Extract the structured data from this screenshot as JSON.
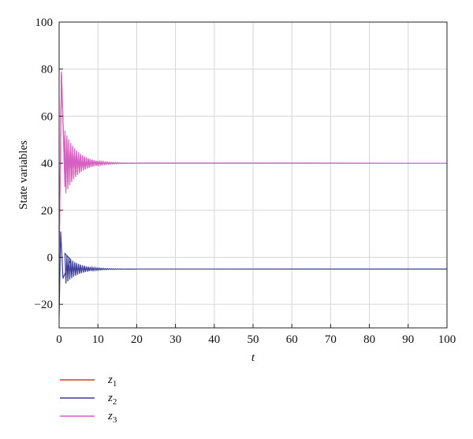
{
  "chart_data": {
    "type": "line",
    "title": "",
    "xlabel": "t",
    "ylabel": "State variables",
    "xlim": [
      0,
      100
    ],
    "ylim": [
      -30,
      100
    ],
    "grid": true,
    "legend_placement": "bottom-left",
    "x_ticks": [
      "0",
      "10",
      "20",
      "30",
      "40",
      "50",
      "60",
      "70",
      "80",
      "90",
      "100"
    ],
    "y_ticks": [
      "-20",
      "0",
      "20",
      "40",
      "60",
      "80",
      "100"
    ],
    "y_tick_values": [
      -20,
      0,
      20,
      40,
      60,
      80,
      100
    ],
    "x_tick_values": [
      0,
      10,
      20,
      30,
      40,
      50,
      60,
      70,
      80,
      90,
      100
    ],
    "series": [
      {
        "name": "z",
        "subscript": "1",
        "color": "#e8322f",
        "final_value": 40,
        "points": [
          [
            0,
            0
          ],
          [
            0.3,
            38
          ],
          [
            0.6,
            78
          ],
          [
            1.5,
            32
          ],
          [
            5,
            44
          ],
          [
            10,
            40.5
          ],
          [
            20,
            40
          ],
          [
            100,
            40
          ]
        ]
      },
      {
        "name": "z",
        "subscript": "2",
        "color": "#3b3b9a",
        "final_value": -5,
        "points": [
          [
            0,
            -25
          ],
          [
            0.4,
            11
          ],
          [
            1,
            -9
          ],
          [
            3,
            -1
          ],
          [
            6,
            -7
          ],
          [
            12,
            -5
          ],
          [
            100,
            -5
          ]
        ]
      },
      {
        "name": "z",
        "subscript": "3",
        "color": "#d45fc8",
        "final_value": 40,
        "points": [
          [
            0,
            0
          ],
          [
            0.3,
            38
          ],
          [
            0.6,
            79
          ],
          [
            1.5,
            30
          ],
          [
            5,
            45
          ],
          [
            10,
            40.5
          ],
          [
            20,
            40
          ],
          [
            100,
            40
          ]
        ]
      }
    ]
  }
}
